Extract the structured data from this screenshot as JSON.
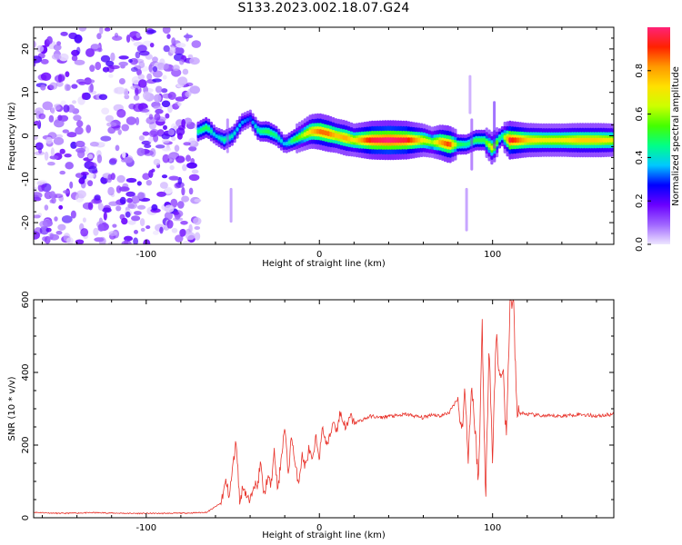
{
  "title": "S133.2023.002.18.07.G24",
  "colors": {
    "snr_line": "#e8322a",
    "frame": "#000000"
  },
  "chart_data": [
    {
      "type": "heatmap",
      "xlabel": "Height of straight line (km)",
      "ylabel": "Frequency (Hz)",
      "xlim": [
        -165,
        170
      ],
      "ylim": [
        -25,
        25
      ],
      "x_ticks": [
        -100,
        0,
        100
      ],
      "y_ticks": [
        -20,
        -10,
        0,
        10,
        20
      ],
      "grid": false,
      "colorbar": {
        "label": "Normalized spectral amplitude",
        "range": [
          0.0,
          1.0
        ],
        "ticks": [
          0.0,
          0.2,
          0.4,
          0.6,
          0.8
        ],
        "colormap": [
          "#eee6ff",
          "#a066ff",
          "#6a00ff",
          "#0000ff",
          "#00c8ff",
          "#00ff88",
          "#44ff00",
          "#ccff00",
          "#ffe000",
          "#ff9900",
          "#ff2200",
          "#ff2277"
        ]
      },
      "noise_region_x": [
        -165,
        -70
      ],
      "signal_ridge": {
        "x": [
          -70,
          -65,
          -60,
          -55,
          -50,
          -45,
          -40,
          -35,
          -30,
          -25,
          -20,
          -15,
          -10,
          -5,
          0,
          5,
          10,
          15,
          20,
          30,
          40,
          50,
          60,
          65,
          70,
          75,
          80,
          85,
          90,
          95,
          100,
          105,
          110,
          120,
          130,
          140,
          150,
          160,
          170
        ],
        "freq": [
          1,
          2,
          0,
          -1,
          0,
          3,
          4,
          1,
          1,
          0,
          -2,
          -1,
          0,
          1,
          1,
          0.5,
          0,
          -0.5,
          -1,
          -1,
          -1,
          -1,
          -1,
          -1.5,
          -1.5,
          -2,
          -2,
          -2,
          -1,
          -1,
          -3,
          0,
          -1,
          -1,
          -1,
          -1,
          -1,
          -1,
          -1
        ],
        "amplitude": [
          0.45,
          0.5,
          0.35,
          0.45,
          0.4,
          0.35,
          0.3,
          0.45,
          0.5,
          0.45,
          0.35,
          0.5,
          0.6,
          0.75,
          0.85,
          0.85,
          0.75,
          0.8,
          0.7,
          0.95,
          1.0,
          0.95,
          0.7,
          0.6,
          0.8,
          0.9,
          0.5,
          0.45,
          0.5,
          0.5,
          0.7,
          0.4,
          0.95,
          0.75,
          0.7,
          0.7,
          0.75,
          0.75,
          0.7
        ]
      }
    },
    {
      "type": "line",
      "xlabel": "Height of straight line (km)",
      "ylabel": "SNR (10 * v/v)",
      "xlim": [
        -165,
        170
      ],
      "ylim": [
        0,
        600
      ],
      "x_ticks": [
        -100,
        0,
        100
      ],
      "y_ticks": [
        0,
        200,
        400,
        600
      ],
      "grid": false,
      "series": [
        {
          "x": [
            -165,
            -150,
            -130,
            -110,
            -90,
            -75,
            -65,
            -57,
            -54,
            -52,
            -50,
            -48,
            -46,
            -44,
            -42,
            -40,
            -38,
            -36,
            -34,
            -32,
            -30,
            -28,
            -26,
            -24,
            -22,
            -20,
            -18,
            -16,
            -14,
            -12,
            -10,
            -8,
            -6,
            -4,
            -2,
            0,
            2,
            4,
            6,
            8,
            10,
            12,
            14,
            16,
            18,
            20,
            25,
            30,
            35,
            40,
            45,
            50,
            55,
            60,
            65,
            70,
            75,
            80,
            82,
            84,
            86,
            88,
            90,
            92,
            94,
            96,
            98,
            100,
            102,
            104,
            106,
            108,
            110,
            112,
            114,
            120,
            130,
            140,
            150,
            160,
            170
          ],
          "y": [
            15,
            12,
            14,
            12,
            12,
            13,
            15,
            40,
            100,
            60,
            140,
            215,
            40,
            90,
            60,
            40,
            100,
            80,
            150,
            60,
            110,
            90,
            180,
            70,
            170,
            250,
            120,
            230,
            140,
            100,
            170,
            140,
            190,
            150,
            220,
            170,
            250,
            200,
            220,
            270,
            240,
            290,
            260,
            250,
            280,
            260,
            270,
            280,
            275,
            280,
            280,
            285,
            280,
            275,
            285,
            280,
            290,
            330,
            230,
            350,
            170,
            370,
            230,
            100,
            540,
            30,
            500,
            150,
            510,
            380,
            420,
            210,
            590,
            600,
            290,
            285,
            280,
            280,
            285,
            280,
            285
          ]
        }
      ]
    }
  ]
}
